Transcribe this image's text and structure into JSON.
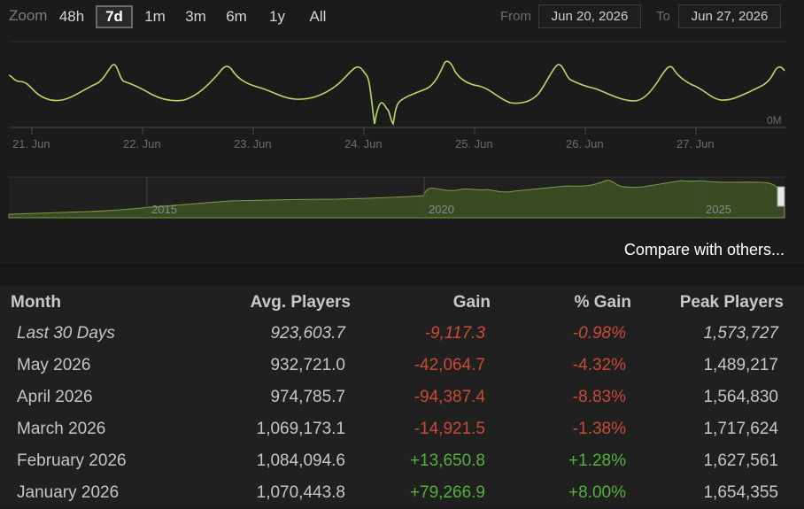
{
  "zoom": {
    "label": "Zoom",
    "options": [
      "48h",
      "7d",
      "1m",
      "3m",
      "6m",
      "1y",
      "All"
    ],
    "selected": "7d"
  },
  "range": {
    "from_label": "From",
    "from_value": "Jun 20, 2026",
    "to_label": "To",
    "to_value": "Jun 27, 2026"
  },
  "chart": {
    "y_axis_label": "0M",
    "x_ticks": [
      "21. Jun",
      "22. Jun",
      "23. Jun",
      "24. Jun",
      "25. Jun",
      "26. Jun",
      "27. Jun"
    ],
    "navigator_years": [
      "2015",
      "2020",
      "2025"
    ],
    "line_color": "#b6d96b",
    "area_color": "#3a4a22"
  },
  "compare_link": "Compare with others...",
  "table": {
    "headers": [
      "Month",
      "Avg. Players",
      "Gain",
      "% Gain",
      "Peak Players"
    ],
    "rows": [
      {
        "month": "Last 30 Days",
        "avg": "923,603.7",
        "gain": "-9,117.3",
        "pct": "-0.98%",
        "peak": "1,573,727"
      },
      {
        "month": "May 2026",
        "avg": "932,721.0",
        "gain": "-42,064.7",
        "pct": "-4.32%",
        "peak": "1,489,217"
      },
      {
        "month": "April 2026",
        "avg": "974,785.7",
        "gain": "-94,387.4",
        "pct": "-8.83%",
        "peak": "1,564,830"
      },
      {
        "month": "March 2026",
        "avg": "1,069,173.1",
        "gain": "-14,921.5",
        "pct": "-1.38%",
        "peak": "1,717,624"
      },
      {
        "month": "February 2026",
        "avg": "1,084,094.6",
        "gain": "+13,650.8",
        "pct": "+1.28%",
        "peak": "1,627,561"
      },
      {
        "month": "January 2026",
        "avg": "1,070,443.8",
        "gain": "+79,266.9",
        "pct": "+8.00%",
        "peak": "1,654,355"
      }
    ]
  }
}
